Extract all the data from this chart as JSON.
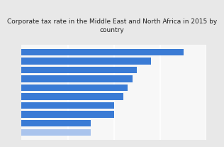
{
  "title": "Corporate tax rate in the Middle East and North Africa in 2015 by\ncountry",
  "title_fontsize": 6.5,
  "values": [
    35,
    28,
    25,
    24,
    23,
    22,
    20,
    20,
    15,
    15
  ],
  "bar_color_main": "#3a7bd5",
  "bar_color_last": "#aac4ed",
  "background_color": "#e8e8e8",
  "plot_background": "#f7f7f7",
  "xlim": [
    0,
    40
  ],
  "grid_color": "#ffffff",
  "grid_linewidth": 1.2
}
